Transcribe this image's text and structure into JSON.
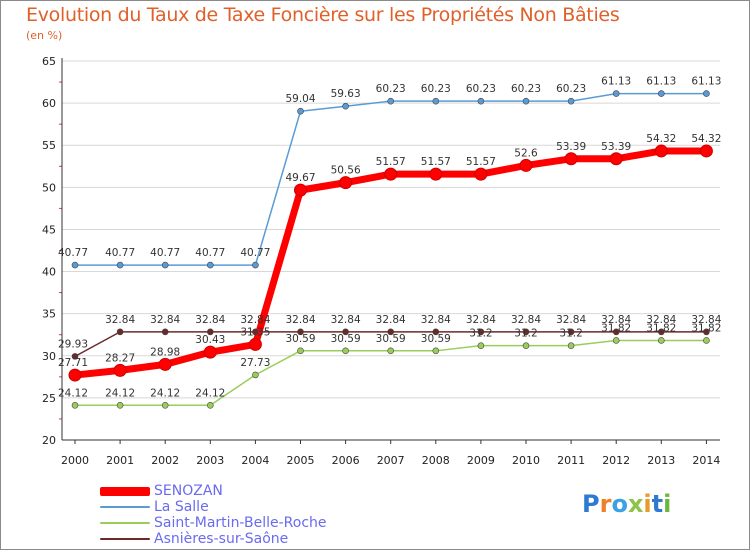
{
  "chart_data": {
    "type": "line",
    "title": "Evolution du Taux de Taxe Foncière sur les Propriétés Non Bâties",
    "subtitle": "(en %)",
    "x": [
      "2000",
      "2001",
      "2002",
      "2003",
      "2004",
      "2005",
      "2006",
      "2007",
      "2008",
      "2009",
      "2010",
      "2011",
      "2012",
      "2013",
      "2014"
    ],
    "ylim": [
      20,
      65
    ],
    "yticks": [
      "20",
      "25",
      "30",
      "35",
      "40",
      "45",
      "50",
      "55",
      "60",
      "65"
    ],
    "series": [
      {
        "name": "SENOZAN",
        "color": "#ff0000",
        "values": [
          27.71,
          28.27,
          28.98,
          30.43,
          31.35,
          49.67,
          50.56,
          51.57,
          51.57,
          51.57,
          52.6,
          53.39,
          53.39,
          54.32,
          54.32
        ],
        "labels": [
          "27.71",
          "28.27",
          "28.98",
          "30.43",
          "31.35",
          "49.67",
          "50.56",
          "51.57",
          "51.57",
          "51.57",
          "52.6",
          "53.39",
          "53.39",
          "54.32",
          "54.32"
        ]
      },
      {
        "name": "La Salle",
        "color": "#5b9bd5",
        "values": [
          40.77,
          40.77,
          40.77,
          40.77,
          40.77,
          59.04,
          59.63,
          60.23,
          60.23,
          60.23,
          60.23,
          60.23,
          61.13,
          61.13,
          61.13
        ],
        "labels": [
          "40.77",
          "40.77",
          "40.77",
          "40.77",
          "40.77",
          "59.04",
          "59.63",
          "60.23",
          "60.23",
          "60.23",
          "60.23",
          "60.23",
          "61.13",
          "61.13",
          "61.13"
        ]
      },
      {
        "name": "Saint-Martin-Belle-Roche",
        "color": "#9acd5a",
        "values": [
          24.12,
          24.12,
          24.12,
          24.12,
          27.73,
          30.59,
          30.59,
          30.59,
          30.59,
          31.2,
          31.2,
          31.2,
          31.82,
          31.82,
          31.82
        ],
        "labels": [
          "24.12",
          "24.12",
          "24.12",
          "24.12",
          "27.73",
          "30.59",
          "30.59",
          "30.59",
          "30.59",
          "31.2",
          "31.2",
          "31.2",
          "31.82",
          "31.82",
          "31.82"
        ]
      },
      {
        "name": "Asnières-sur-Saône",
        "color": "#6b2a2a",
        "values": [
          29.93,
          32.84,
          32.84,
          32.84,
          32.84,
          32.84,
          32.84,
          32.84,
          32.84,
          32.84,
          32.84,
          32.84,
          32.84,
          32.84,
          32.84
        ],
        "labels": [
          "29.93",
          "32.84",
          "32.84",
          "32.84",
          "32.84",
          "32.84",
          "32.84",
          "32.84",
          "32.84",
          "32.84",
          "32.84",
          "32.84",
          "32.84",
          "32.84",
          "32.84"
        ]
      }
    ]
  },
  "legend": {
    "items": [
      "SENOZAN",
      "La Salle",
      "Saint-Martin-Belle-Roche",
      "Asnières-sur-Saône"
    ]
  },
  "logo": {
    "text": "Proxiti"
  }
}
